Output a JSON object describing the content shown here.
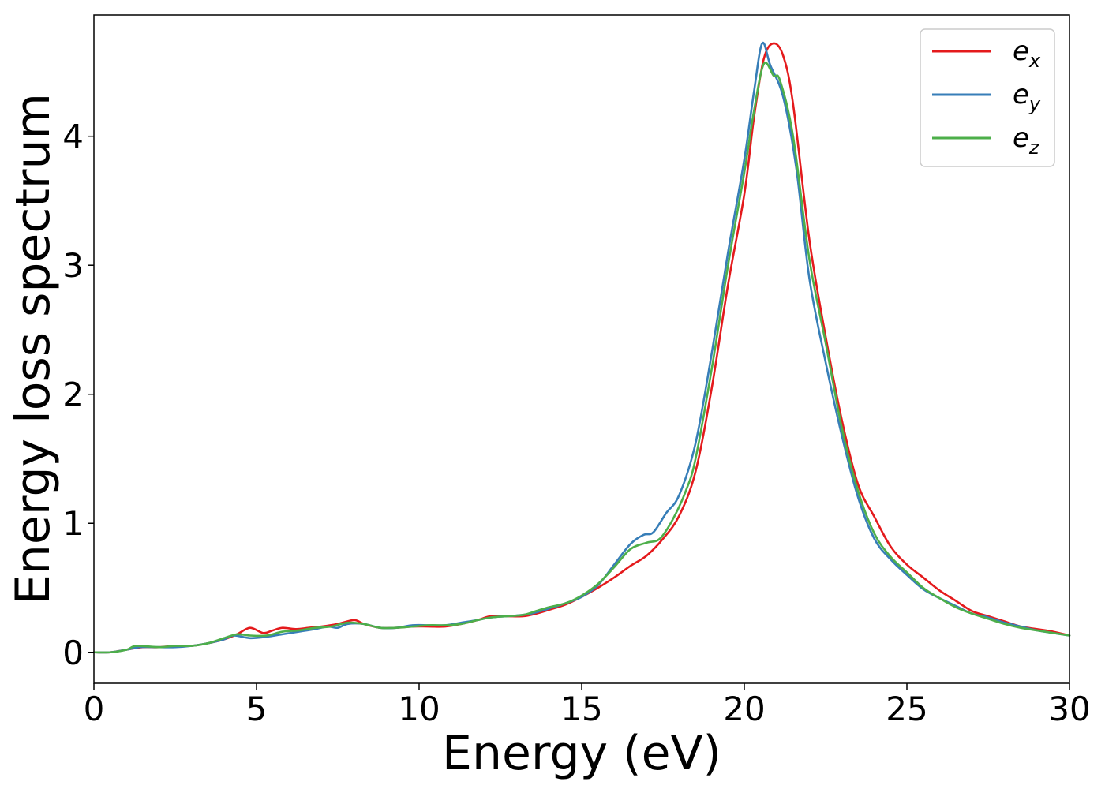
{
  "chart_data": {
    "type": "line",
    "title": "",
    "xlabel": "Energy (eV)",
    "ylabel": "Energy loss spectrum",
    "xlim": [
      0,
      30
    ],
    "ylim": [
      -0.24,
      4.94
    ],
    "xticks": [
      0,
      5,
      10,
      15,
      20,
      25,
      30
    ],
    "yticks": [
      0,
      1,
      2,
      3,
      4
    ],
    "grid": false,
    "legend_position": "top-right",
    "series": [
      {
        "name": "e_x",
        "label_base": "e",
        "label_sub": "x",
        "color": "#e41a1c",
        "points": [
          [
            0,
            0.0
          ],
          [
            0.5,
            0.0
          ],
          [
            1,
            0.02
          ],
          [
            1.5,
            0.04
          ],
          [
            2,
            0.04
          ],
          [
            2.5,
            0.05
          ],
          [
            3,
            0.05
          ],
          [
            3.5,
            0.07
          ],
          [
            4,
            0.1
          ],
          [
            4.4,
            0.14
          ],
          [
            4.8,
            0.19
          ],
          [
            5.2,
            0.15
          ],
          [
            5.5,
            0.17
          ],
          [
            5.8,
            0.19
          ],
          [
            6.2,
            0.18
          ],
          [
            6.6,
            0.19
          ],
          [
            7,
            0.2
          ],
          [
            7.5,
            0.22
          ],
          [
            8,
            0.25
          ],
          [
            8.3,
            0.22
          ],
          [
            8.8,
            0.19
          ],
          [
            9.3,
            0.19
          ],
          [
            9.8,
            0.2
          ],
          [
            10.3,
            0.2
          ],
          [
            10.8,
            0.2
          ],
          [
            11.3,
            0.22
          ],
          [
            11.8,
            0.25
          ],
          [
            12.2,
            0.28
          ],
          [
            12.7,
            0.28
          ],
          [
            13.2,
            0.28
          ],
          [
            13.6,
            0.3
          ],
          [
            14,
            0.33
          ],
          [
            14.5,
            0.37
          ],
          [
            15,
            0.43
          ],
          [
            15.5,
            0.5
          ],
          [
            16,
            0.58
          ],
          [
            16.5,
            0.67
          ],
          [
            17,
            0.75
          ],
          [
            17.5,
            0.88
          ],
          [
            18,
            1.06
          ],
          [
            18.5,
            1.4
          ],
          [
            19,
            2.05
          ],
          [
            19.5,
            2.85
          ],
          [
            20,
            3.55
          ],
          [
            20.3,
            4.15
          ],
          [
            20.6,
            4.6
          ],
          [
            20.9,
            4.72
          ],
          [
            21.2,
            4.62
          ],
          [
            21.5,
            4.25
          ],
          [
            22,
            3.2
          ],
          [
            22.5,
            2.45
          ],
          [
            23,
            1.8
          ],
          [
            23.5,
            1.3
          ],
          [
            24,
            1.05
          ],
          [
            24.5,
            0.82
          ],
          [
            25,
            0.68
          ],
          [
            25.5,
            0.58
          ],
          [
            26,
            0.48
          ],
          [
            26.5,
            0.4
          ],
          [
            27,
            0.32
          ],
          [
            27.5,
            0.28
          ],
          [
            28,
            0.24
          ],
          [
            28.5,
            0.2
          ],
          [
            29,
            0.18
          ],
          [
            29.5,
            0.16
          ],
          [
            30,
            0.13
          ]
        ]
      },
      {
        "name": "e_y",
        "label_base": "e",
        "label_sub": "y",
        "color": "#377eb8",
        "points": [
          [
            0,
            0.0
          ],
          [
            0.5,
            0.0
          ],
          [
            1,
            0.02
          ],
          [
            1.4,
            0.04
          ],
          [
            2,
            0.04
          ],
          [
            2.5,
            0.04
          ],
          [
            3,
            0.05
          ],
          [
            3.5,
            0.07
          ],
          [
            4,
            0.1
          ],
          [
            4.3,
            0.13
          ],
          [
            4.8,
            0.11
          ],
          [
            5.3,
            0.12
          ],
          [
            5.8,
            0.14
          ],
          [
            6.3,
            0.16
          ],
          [
            6.8,
            0.18
          ],
          [
            7.2,
            0.2
          ],
          [
            7.5,
            0.19
          ],
          [
            7.8,
            0.22
          ],
          [
            8.3,
            0.22
          ],
          [
            8.8,
            0.19
          ],
          [
            9.3,
            0.19
          ],
          [
            9.8,
            0.21
          ],
          [
            10.3,
            0.21
          ],
          [
            10.8,
            0.21
          ],
          [
            11.3,
            0.23
          ],
          [
            11.8,
            0.25
          ],
          [
            12.2,
            0.27
          ],
          [
            12.7,
            0.28
          ],
          [
            13.2,
            0.29
          ],
          [
            13.6,
            0.31
          ],
          [
            14,
            0.34
          ],
          [
            14.5,
            0.38
          ],
          [
            15,
            0.43
          ],
          [
            15.5,
            0.52
          ],
          [
            16,
            0.68
          ],
          [
            16.5,
            0.84
          ],
          [
            16.9,
            0.91
          ],
          [
            17.2,
            0.93
          ],
          [
            17.6,
            1.08
          ],
          [
            18,
            1.22
          ],
          [
            18.5,
            1.62
          ],
          [
            19,
            2.32
          ],
          [
            19.5,
            3.1
          ],
          [
            20,
            3.82
          ],
          [
            20.3,
            4.35
          ],
          [
            20.55,
            4.72
          ],
          [
            20.8,
            4.55
          ],
          [
            21.2,
            4.3
          ],
          [
            21.6,
            3.75
          ],
          [
            22,
            2.9
          ],
          [
            22.5,
            2.25
          ],
          [
            23,
            1.68
          ],
          [
            23.5,
            1.2
          ],
          [
            24,
            0.88
          ],
          [
            24.5,
            0.72
          ],
          [
            25,
            0.6
          ],
          [
            25.5,
            0.49
          ],
          [
            26,
            0.42
          ],
          [
            26.5,
            0.36
          ],
          [
            27,
            0.3
          ],
          [
            27.5,
            0.27
          ],
          [
            28,
            0.23
          ],
          [
            28.5,
            0.2
          ],
          [
            29,
            0.17
          ],
          [
            29.5,
            0.15
          ],
          [
            30,
            0.13
          ]
        ]
      },
      {
        "name": "e_z",
        "label_base": "e",
        "label_sub": "z",
        "color": "#4daf4a",
        "points": [
          [
            0,
            0.0
          ],
          [
            0.5,
            0.0
          ],
          [
            1,
            0.02
          ],
          [
            1.3,
            0.05
          ],
          [
            2,
            0.04
          ],
          [
            2.5,
            0.05
          ],
          [
            3,
            0.05
          ],
          [
            3.5,
            0.07
          ],
          [
            4,
            0.11
          ],
          [
            4.4,
            0.14
          ],
          [
            4.8,
            0.13
          ],
          [
            5.3,
            0.13
          ],
          [
            5.8,
            0.16
          ],
          [
            6.3,
            0.17
          ],
          [
            6.8,
            0.19
          ],
          [
            7.3,
            0.2
          ],
          [
            7.8,
            0.23
          ],
          [
            8.3,
            0.22
          ],
          [
            8.8,
            0.19
          ],
          [
            9.3,
            0.19
          ],
          [
            9.8,
            0.2
          ],
          [
            10.3,
            0.21
          ],
          [
            10.8,
            0.21
          ],
          [
            11.3,
            0.22
          ],
          [
            11.8,
            0.25
          ],
          [
            12.2,
            0.27
          ],
          [
            12.7,
            0.28
          ],
          [
            13.2,
            0.29
          ],
          [
            13.6,
            0.32
          ],
          [
            14,
            0.35
          ],
          [
            14.5,
            0.38
          ],
          [
            15,
            0.44
          ],
          [
            15.5,
            0.53
          ],
          [
            16,
            0.66
          ],
          [
            16.5,
            0.8
          ],
          [
            17,
            0.85
          ],
          [
            17.4,
            0.88
          ],
          [
            17.8,
            1.03
          ],
          [
            18.2,
            1.25
          ],
          [
            18.5,
            1.5
          ],
          [
            19,
            2.2
          ],
          [
            19.5,
            3.0
          ],
          [
            20,
            3.72
          ],
          [
            20.3,
            4.2
          ],
          [
            20.6,
            4.56
          ],
          [
            20.9,
            4.47
          ],
          [
            21.1,
            4.43
          ],
          [
            21.5,
            4.0
          ],
          [
            22,
            3.05
          ],
          [
            22.5,
            2.4
          ],
          [
            23,
            1.74
          ],
          [
            23.5,
            1.25
          ],
          [
            24,
            0.92
          ],
          [
            24.5,
            0.74
          ],
          [
            25,
            0.62
          ],
          [
            25.5,
            0.5
          ],
          [
            26,
            0.42
          ],
          [
            26.5,
            0.35
          ],
          [
            27,
            0.3
          ],
          [
            27.5,
            0.26
          ],
          [
            28,
            0.22
          ],
          [
            28.5,
            0.19
          ],
          [
            29,
            0.17
          ],
          [
            29.5,
            0.15
          ],
          [
            30,
            0.13
          ]
        ]
      }
    ]
  }
}
